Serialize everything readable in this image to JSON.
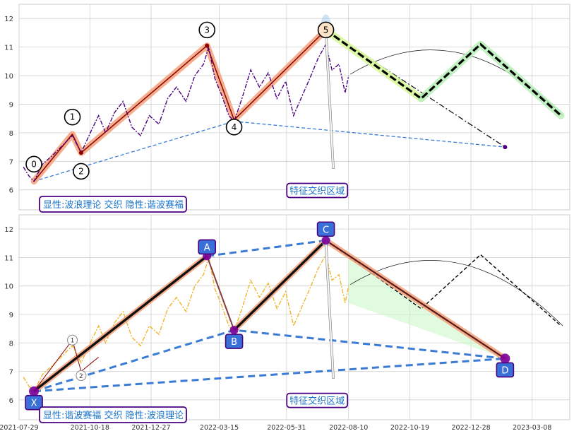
{
  "chart_data": [
    {
      "type": "line",
      "panel": "top",
      "ylim": [
        5.3,
        12.5
      ],
      "yticks": [
        6,
        7,
        8,
        9,
        10,
        11,
        12
      ],
      "xlim": [
        "2021-07-29",
        "2023-04-20"
      ],
      "grid": true,
      "caption": "显性:波浪理论 交织 隐性:谐波赛福",
      "zone_label": "特征交织区域",
      "wave_points": [
        {
          "label": "0",
          "date": "2021-08-15",
          "value": 6.3
        },
        {
          "label": "1",
          "date": "2021-09-28",
          "value": 7.95
        },
        {
          "label": "2",
          "date": "2021-10-08",
          "value": 7.3
        },
        {
          "label": "3",
          "date": "2022-03-01",
          "value": 11.05
        },
        {
          "label": "4",
          "date": "2022-04-01",
          "value": 8.45
        },
        {
          "label": "5",
          "date": "2022-07-15",
          "value": 11.6
        }
      ],
      "price_series": [
        {
          "date": "2021-08-03",
          "value": 6.8
        },
        {
          "date": "2021-08-09",
          "value": 6.5
        },
        {
          "date": "2021-08-15",
          "value": 6.3
        },
        {
          "date": "2021-08-25",
          "value": 6.9
        },
        {
          "date": "2021-09-05",
          "value": 7.2
        },
        {
          "date": "2021-09-15",
          "value": 7.5
        },
        {
          "date": "2021-09-28",
          "value": 7.9
        },
        {
          "date": "2021-10-08",
          "value": 7.3
        },
        {
          "date": "2021-10-20",
          "value": 8.1
        },
        {
          "date": "2021-10-28",
          "value": 8.6
        },
        {
          "date": "2021-11-05",
          "value": 8.0
        },
        {
          "date": "2021-11-15",
          "value": 8.7
        },
        {
          "date": "2021-11-25",
          "value": 9.1
        },
        {
          "date": "2021-12-05",
          "value": 8.2
        },
        {
          "date": "2021-12-15",
          "value": 7.9
        },
        {
          "date": "2021-12-25",
          "value": 8.6
        },
        {
          "date": "2022-01-05",
          "value": 8.3
        },
        {
          "date": "2022-01-15",
          "value": 9.2
        },
        {
          "date": "2022-01-25",
          "value": 9.6
        },
        {
          "date": "2022-02-05",
          "value": 9.1
        },
        {
          "date": "2022-02-15",
          "value": 10.0
        },
        {
          "date": "2022-02-25",
          "value": 10.4
        },
        {
          "date": "2022-03-03",
          "value": 11.0
        },
        {
          "date": "2022-03-10",
          "value": 9.9
        },
        {
          "date": "2022-03-18",
          "value": 9.3
        },
        {
          "date": "2022-03-26",
          "value": 8.6
        },
        {
          "date": "2022-04-01",
          "value": 8.4
        },
        {
          "date": "2022-04-10",
          "value": 9.2
        },
        {
          "date": "2022-04-20",
          "value": 10.2
        },
        {
          "date": "2022-04-30",
          "value": 9.6
        },
        {
          "date": "2022-05-10",
          "value": 10.1
        },
        {
          "date": "2022-05-20",
          "value": 9.2
        },
        {
          "date": "2022-05-30",
          "value": 9.8
        },
        {
          "date": "2022-06-08",
          "value": 8.6
        },
        {
          "date": "2022-06-18",
          "value": 9.3
        },
        {
          "date": "2022-06-28",
          "value": 10.0
        },
        {
          "date": "2022-07-06",
          "value": 10.6
        },
        {
          "date": "2022-07-15",
          "value": 11.1
        },
        {
          "date": "2022-07-22",
          "value": 10.2
        },
        {
          "date": "2022-07-30",
          "value": 10.4
        },
        {
          "date": "2022-08-06",
          "value": 9.4
        },
        {
          "date": "2022-08-10",
          "value": 10.0
        }
      ],
      "forecast_path": [
        {
          "date": "2022-07-15",
          "value": 11.6
        },
        {
          "date": "2022-11-01",
          "value": 9.2
        },
        {
          "date": "2023-01-08",
          "value": 11.1
        },
        {
          "date": "2023-04-10",
          "value": 8.6
        }
      ],
      "dashdot_line": [
        {
          "date": "2022-07-15",
          "value": 11.6
        },
        {
          "date": "2023-02-05",
          "value": 7.5
        }
      ],
      "support_line": [
        {
          "date": "2021-08-15",
          "value": 6.3
        },
        {
          "date": "2022-04-01",
          "value": 8.4
        },
        {
          "date": "2023-02-05",
          "value": 7.5
        }
      ]
    },
    {
      "type": "line",
      "panel": "bottom",
      "ylim": [
        5.3,
        12.5
      ],
      "yticks": [
        6,
        7,
        8,
        9,
        10,
        11,
        12
      ],
      "xlim": [
        "2021-07-29",
        "2023-04-20"
      ],
      "xticks": [
        "2021-07-29",
        "2021-10-18",
        "2021-12-27",
        "2022-03-15",
        "2022-05-31",
        "2022-08-10",
        "2022-10-19",
        "2022-12-28",
        "2023-03-08"
      ],
      "grid": true,
      "caption": "显性:谐波赛福 交织 隐性:波浪理论",
      "zone_label": "特征交织区域",
      "harmonic_points": [
        {
          "label": "X",
          "date": "2021-08-15",
          "value": 6.3
        },
        {
          "label": "A",
          "date": "2022-03-01",
          "value": 11.05
        },
        {
          "label": "B",
          "date": "2022-04-01",
          "value": 8.45
        },
        {
          "label": "C",
          "date": "2022-07-15",
          "value": 11.6
        },
        {
          "label": "D",
          "date": "2023-02-05",
          "value": 7.45
        }
      ],
      "minor_points": [
        {
          "label": "1",
          "date": "2021-09-28",
          "value": 8.1
        },
        {
          "label": "2",
          "date": "2021-10-08",
          "value": 7.0
        }
      ]
    }
  ]
}
